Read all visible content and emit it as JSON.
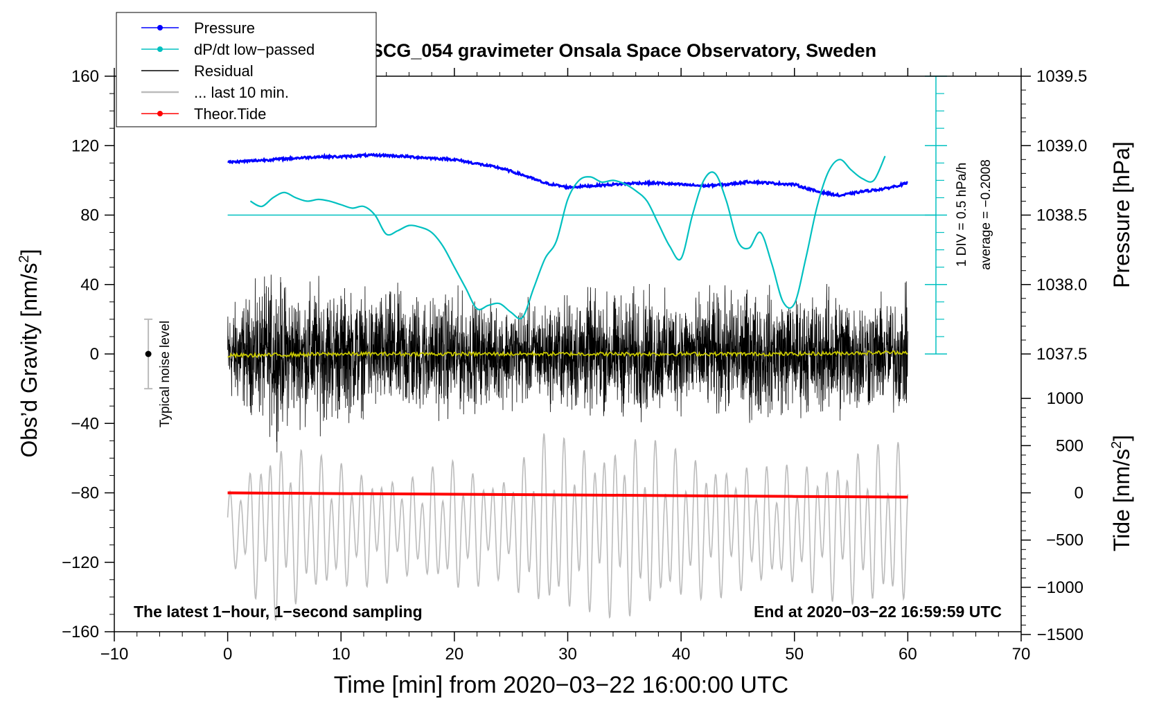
{
  "chart_data": {
    "type": "line",
    "title": "SCG_054 gravimeter Onsala Space Observatory, Sweden",
    "xlabel": "Time [min] from 2020−03−22 16:00:00 UTC",
    "xlim": [
      -10,
      70
    ],
    "x_ticks": [
      "−10",
      "0",
      "10",
      "20",
      "30",
      "40",
      "50",
      "60",
      "70"
    ],
    "x_tick_values": [
      -10,
      0,
      10,
      20,
      30,
      40,
      50,
      60,
      70
    ],
    "left_axis": {
      "label_main": "Obs’d Gravity [nm/s",
      "label_sup": "2",
      "label_end": "]",
      "ylim": [
        -160,
        160
      ],
      "ticks": [
        "−160",
        "−120",
        "−80",
        "−40",
        "0",
        "40",
        "80",
        "120",
        "160"
      ],
      "tick_values": [
        -160,
        -120,
        -80,
        -40,
        0,
        40,
        80,
        120,
        160
      ]
    },
    "pressure_axis": {
      "label": "Pressure [hPa]",
      "ticks": [
        "1037.5",
        "1038.0",
        "1038.5",
        "1039.0",
        "1039.5"
      ],
      "tick_values": [
        1037.5,
        1038.0,
        1038.5,
        1039.0,
        1039.5
      ],
      "value_at_gravity_80": 1038.5,
      "hpa_per_40_gravity": 0.5
    },
    "tide_axis": {
      "label_main": "Tide [nm/s",
      "label_sup": "2",
      "label_end": "]",
      "ticks": [
        "−1500",
        "−1000",
        "−500",
        "0",
        "500",
        "1000"
      ],
      "tick_values": [
        -1500,
        -1000,
        -500,
        0,
        500,
        1000
      ],
      "gravity_at_tide_0": -80,
      "gravity_per_500_tide": 27.2
    },
    "dpdt_scale": {
      "label": "1 DIV = 0.5 hPa/h",
      "average_label": "average = −0.2008",
      "baseline_gravity": 80,
      "axis_range_gravity": [
        0,
        160
      ],
      "major_tick_values": [
        0,
        40,
        80,
        120,
        160
      ]
    },
    "noise_level": {
      "label": "Typical noise level",
      "x": -7,
      "center": 0,
      "half_range": 20
    },
    "series": [
      {
        "name": "Pressure",
        "color": "#0000ff",
        "unit": "hPa",
        "x": [
          0,
          2,
          4,
          6,
          8,
          10,
          12,
          14,
          16,
          18,
          20,
          22,
          24,
          26,
          28,
          30,
          32,
          34,
          36,
          38,
          40,
          42,
          44,
          46,
          48,
          50,
          52,
          54,
          56,
          58,
          60
        ],
        "values": [
          1038.88,
          1038.89,
          1038.9,
          1038.91,
          1038.92,
          1038.92,
          1038.93,
          1038.93,
          1038.92,
          1038.91,
          1038.9,
          1038.87,
          1038.84,
          1038.79,
          1038.73,
          1038.7,
          1038.71,
          1038.72,
          1038.73,
          1038.73,
          1038.72,
          1038.71,
          1038.72,
          1038.74,
          1038.73,
          1038.72,
          1038.67,
          1038.64,
          1038.67,
          1038.69,
          1038.73
        ]
      },
      {
        "name": "dP/dt low−passed",
        "color": "#00c0c0",
        "unit": "gravity-plot units",
        "x": [
          2,
          3,
          4,
          5,
          6,
          7,
          8,
          9,
          10,
          11,
          12,
          13,
          14,
          15,
          16,
          17,
          18,
          19,
          20,
          21,
          22,
          23,
          24,
          25,
          26,
          27,
          28,
          29,
          30,
          31,
          32,
          33,
          34,
          35,
          36,
          37,
          38,
          39,
          40,
          41,
          42,
          43,
          44,
          45,
          46,
          47,
          48,
          49,
          50,
          51,
          52,
          53,
          54,
          55,
          56,
          57,
          58
        ],
        "values": [
          88,
          85,
          90,
          93,
          90,
          88,
          89,
          88,
          86,
          84,
          85,
          80,
          69,
          71,
          74,
          73,
          70,
          62,
          50,
          38,
          26,
          28,
          29,
          24,
          21,
          38,
          55,
          65,
          89,
          100,
          102,
          99,
          100,
          98,
          94,
          88,
          75,
          62,
          55,
          80,
          100,
          104,
          88,
          65,
          61,
          70,
          52,
          30,
          29,
          55,
          85,
          105,
          112,
          106,
          101,
          100,
          114
        ]
      },
      {
        "name": "Residual",
        "color": "#000000",
        "unit": "nm/s²",
        "x": [
          0,
          2,
          4,
          6,
          8,
          10,
          12,
          14,
          16,
          18,
          20,
          22,
          24,
          26,
          28,
          30,
          32,
          34,
          36,
          38,
          40,
          42,
          44,
          46,
          48,
          50,
          52,
          54,
          56,
          58,
          60
        ],
        "values": [
          0,
          0,
          0,
          0,
          0,
          0,
          0,
          0,
          0,
          0,
          0,
          0,
          0,
          0,
          0,
          0,
          0,
          0,
          0,
          0,
          0,
          0,
          0,
          0,
          0,
          0,
          0,
          0,
          0,
          0,
          0
        ],
        "envelope_abs": [
          38,
          45,
          62,
          50,
          55,
          52,
          45,
          48,
          50,
          45,
          48,
          40,
          38,
          40,
          38,
          46,
          48,
          45,
          50,
          46,
          44,
          45,
          48,
          50,
          48,
          45,
          48,
          52,
          45,
          42,
          48
        ]
      },
      {
        "name": "... last 10 min.",
        "color": "#bbbbbb",
        "unit": "nm/s² (plotted at gravity −100 baseline)",
        "x": [
          0,
          4,
          8,
          12,
          16,
          20,
          24,
          28,
          32,
          36,
          40,
          44,
          48,
          52,
          56,
          60
        ],
        "values": [
          0,
          0,
          0,
          0,
          0,
          0,
          0,
          0,
          0,
          0,
          0,
          0,
          0,
          0,
          0,
          0
        ],
        "envelope_abs": [
          20,
          55,
          42,
          35,
          30,
          40,
          30,
          55,
          50,
          55,
          45,
          40,
          35,
          40,
          48,
          50
        ]
      },
      {
        "name": "Theor.Tide",
        "color": "#ff0000",
        "unit": "nm/s² (tide axis)",
        "x": [
          0,
          10,
          20,
          30,
          40,
          50,
          60
        ],
        "values": [
          0,
          -8,
          -15,
          -22,
          -30,
          -38,
          -45
        ]
      },
      {
        "name": "Low-passed residual",
        "color": "#c8c800",
        "unit": "nm/s²",
        "x": [
          0,
          10,
          20,
          30,
          40,
          50,
          60
        ],
        "values": [
          -1,
          0,
          0,
          0,
          0,
          0,
          1
        ]
      }
    ],
    "legend": {
      "position": "top-left",
      "entries": [
        {
          "label": "Pressure",
          "color": "#0000ff",
          "marker": true
        },
        {
          "label": "dP/dt low−passed",
          "color": "#00c0c0",
          "marker": true
        },
        {
          "label": "Residual",
          "color": "#000000",
          "marker": false
        },
        {
          "label": "... last 10 min.",
          "color": "#bbbbbb",
          "marker": false
        },
        {
          "label": "Theor.Tide",
          "color": "#ff0000",
          "marker": true
        }
      ]
    },
    "annotations": {
      "bottom_left": "The latest 1−hour, 1−second sampling",
      "bottom_right": "End at 2020−03−22 16:59:59 UTC"
    }
  }
}
